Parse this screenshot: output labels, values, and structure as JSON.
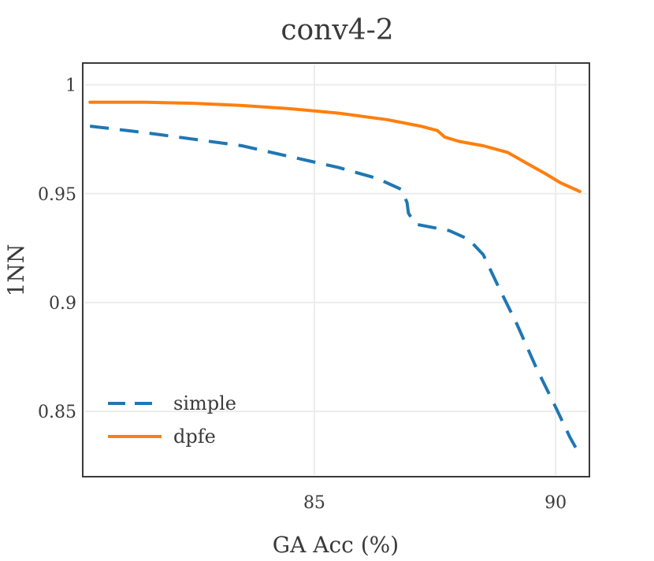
{
  "chart_data": {
    "type": "line",
    "title": "conv4-2",
    "xlabel": "GA Acc (%)",
    "ylabel": "1NN",
    "xlim": [
      80.2,
      90.7
    ],
    "ylim": [
      0.82,
      1.01
    ],
    "xticks": [
      85,
      90
    ],
    "xtick_labels": [
      "85",
      "90"
    ],
    "yticks": [
      0.85,
      0.9,
      0.95,
      1.0
    ],
    "ytick_labels": [
      "0.85",
      "0.9",
      "0.95",
      "1"
    ],
    "grid": true,
    "legend_position": "bottom-left",
    "series": [
      {
        "name": "simple",
        "color": "#1f77b4",
        "style": "dashed",
        "x": [
          80.35,
          81.5,
          82.5,
          83.5,
          84.5,
          85.5,
          86.3,
          86.8,
          86.92,
          86.95,
          87.1,
          87.8,
          88.2,
          88.5,
          88.8,
          89.2,
          89.6,
          90.0,
          90.3,
          90.5
        ],
        "y": [
          0.981,
          0.978,
          0.975,
          0.972,
          0.967,
          0.962,
          0.957,
          0.952,
          0.946,
          0.941,
          0.936,
          0.933,
          0.929,
          0.922,
          0.908,
          0.89,
          0.87,
          0.852,
          0.838,
          0.83
        ]
      },
      {
        "name": "dpfe",
        "color": "#ff7f0e",
        "style": "solid",
        "x": [
          80.35,
          81.5,
          82.5,
          83.5,
          84.5,
          85.5,
          86.5,
          87.2,
          87.55,
          87.7,
          88.0,
          88.5,
          89.0,
          89.4,
          89.8,
          90.1,
          90.5
        ],
        "y": [
          0.992,
          0.992,
          0.9915,
          0.9905,
          0.989,
          0.987,
          0.984,
          0.981,
          0.979,
          0.976,
          0.974,
          0.972,
          0.969,
          0.964,
          0.959,
          0.955,
          0.951
        ]
      }
    ]
  }
}
